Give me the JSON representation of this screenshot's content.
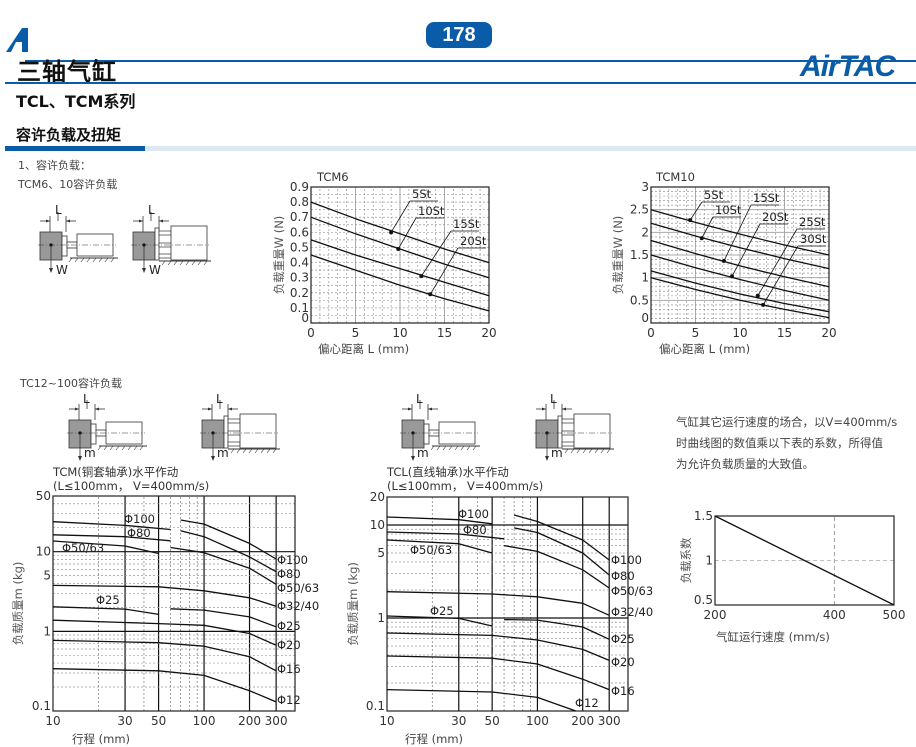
{
  "header": {
    "page_number": "178",
    "title": "三轴气缸",
    "logo": "AirTAC",
    "series": "TCL、TCM系列",
    "section": "容许负载及扭矩",
    "accent_color": "#0a5ca8"
  },
  "intro": {
    "item": "1、容许负载：",
    "sub_tcm": "TCM6、10容许负载",
    "sub_tc": "TC12~100容许负载"
  },
  "diagrams": {
    "dim_label": "L",
    "force_label": "W",
    "mass_label": "m"
  },
  "note": {
    "lines": [
      "气缸其它运行速度的场合，以V=400mm/s",
      "时曲线图的数值乘以下表的系数，所得值",
      "为允许负载质量的大致值。"
    ]
  },
  "chart_data": [
    {
      "type": "line",
      "title": "TCM6",
      "xlabel": "偏心距离  L (mm)",
      "ylabel": "负载重量W (N)",
      "xscale": "linear",
      "yscale": "linear",
      "xlim": [
        0,
        20
      ],
      "ylim": [
        0,
        0.9
      ],
      "xticks": [
        0,
        5,
        10,
        15,
        20
      ],
      "yticks": [
        0,
        0.1,
        0.2,
        0.3,
        0.4,
        0.5,
        0.6,
        0.7,
        0.8,
        0.9
      ],
      "grid": true,
      "series": [
        {
          "name": "5St",
          "segments": [
            [
              [
                0,
                0.8
              ],
              [
                5,
                0.69
              ],
              [
                10,
                0.59
              ],
              [
                15,
                0.49
              ],
              [
                20,
                0.4
              ]
            ]
          ],
          "marker": [
            9,
            0.6
          ]
        },
        {
          "name": "10St",
          "segments": [
            [
              [
                0,
                0.7
              ],
              [
                5,
                0.59
              ],
              [
                10,
                0.49
              ],
              [
                15,
                0.39
              ],
              [
                20,
                0.3
              ]
            ]
          ],
          "marker": [
            9.8,
            0.49
          ]
        },
        {
          "name": "15St",
          "segments": [
            [
              [
                0,
                0.55
              ],
              [
                5,
                0.45
              ],
              [
                10,
                0.36
              ],
              [
                15,
                0.27
              ],
              [
                20,
                0.18
              ]
            ]
          ],
          "marker": [
            12.4,
            0.31
          ]
        },
        {
          "name": "20St",
          "segments": [
            [
              [
                0,
                0.45
              ],
              [
                5,
                0.35
              ],
              [
                10,
                0.25
              ],
              [
                15,
                0.16
              ],
              [
                20,
                0.08
              ]
            ]
          ],
          "marker": [
            13.4,
            0.19
          ]
        }
      ]
    },
    {
      "type": "line",
      "title": "TCM10",
      "xlabel": "偏心距离  L (mm)",
      "ylabel": "负载重量W (N)",
      "xscale": "linear",
      "yscale": "linear",
      "xlim": [
        0,
        20
      ],
      "ylim": [
        0,
        3
      ],
      "xticks": [
        0,
        5,
        10,
        15,
        20
      ],
      "yticks": [
        0,
        0.5,
        1,
        1.5,
        2,
        2.5,
        3
      ],
      "grid": true,
      "series": [
        {
          "name": "5St",
          "segments": [
            [
              [
                0,
                2.5
              ],
              [
                5,
                2.22
              ],
              [
                10,
                1.96
              ],
              [
                15,
                1.72
              ],
              [
                20,
                1.5
              ]
            ]
          ],
          "marker": [
            4.4,
            2.27
          ]
        },
        {
          "name": "10St",
          "segments": [
            [
              [
                0,
                2.2
              ],
              [
                5,
                1.92
              ],
              [
                10,
                1.66
              ],
              [
                15,
                1.42
              ],
              [
                20,
                1.2
              ]
            ]
          ],
          "marker": [
            5.7,
            1.87
          ]
        },
        {
          "name": "15St",
          "segments": [
            [
              [
                0,
                1.82
              ],
              [
                5,
                1.53
              ],
              [
                10,
                1.26
              ],
              [
                15,
                1.02
              ],
              [
                20,
                0.8
              ]
            ]
          ],
          "marker": [
            8.2,
            1.37
          ]
        },
        {
          "name": "20St",
          "segments": [
            [
              [
                0,
                1.5
              ],
              [
                5,
                1.22
              ],
              [
                10,
                0.96
              ],
              [
                15,
                0.72
              ],
              [
                20,
                0.5
              ]
            ]
          ],
          "marker": [
            9.1,
            1.03
          ]
        },
        {
          "name": "25St",
          "segments": [
            [
              [
                0,
                1.15
              ],
              [
                5,
                0.88
              ],
              [
                10,
                0.64
              ],
              [
                15,
                0.43
              ],
              [
                20,
                0.25
              ]
            ]
          ],
          "marker": [
            12,
            0.6
          ]
        },
        {
          "name": "30St",
          "segments": [
            [
              [
                0,
                1.0
              ],
              [
                5,
                0.74
              ],
              [
                10,
                0.5
              ],
              [
                15,
                0.3
              ],
              [
                20,
                0.12
              ]
            ]
          ],
          "marker": [
            12.6,
            0.4
          ]
        }
      ]
    },
    {
      "type": "line",
      "title": "TCM(铜套轴承)水平作动",
      "subtitle": "(L≤100mm， V=400mm/s)",
      "xlabel": "行程  (mm)",
      "ylabel": "负载质量m (kg)",
      "xscale": "log",
      "yscale": "log",
      "xlim": [
        10,
        400
      ],
      "ylim": [
        0.1,
        50
      ],
      "xticks": [
        10,
        30,
        50,
        100,
        200,
        300
      ],
      "yticks": [
        0.1,
        1,
        5,
        10,
        50
      ],
      "grid": true,
      "series": [
        {
          "name": "Φ100",
          "segments": [
            [
              [
                10,
                23.8
              ],
              [
                30,
                21.4
              ],
              [
                60,
                19.0
              ]
            ],
            [
              [
                70,
                25.0
              ],
              [
                100,
                22.2
              ],
              [
                200,
                12.7
              ],
              [
                300,
                8.1
              ]
            ]
          ]
        },
        {
          "name": "Φ80",
          "segments": [
            [
              [
                10,
                16.3
              ],
              [
                30,
                15.4
              ],
              [
                60,
                13.7
              ]
            ],
            [
              [
                70,
                18.3
              ],
              [
                100,
                15.4
              ],
              [
                200,
                8.6
              ],
              [
                300,
                5.6
              ]
            ]
          ]
        },
        {
          "name": "Φ50/63",
          "segments": [
            [
              [
                10,
                13.6
              ],
              [
                30,
                11.8
              ],
              [
                50,
                9.5
              ]
            ],
            [
              [
                60,
                11.3
              ],
              [
                100,
                9.7
              ],
              [
                200,
                6.2
              ],
              [
                300,
                3.9
              ]
            ]
          ]
        },
        {
          "name": "Φ32/40",
          "segments": [
            [
              [
                10,
                3.77
              ],
              [
                50,
                3.62
              ],
              [
                100,
                3.23
              ],
              [
                200,
                2.64
              ],
              [
                300,
                2.07
              ]
            ]
          ]
        },
        {
          "name": "Φ25",
          "segments": [
            [
              [
                10,
                2.03
              ],
              [
                30,
                1.9
              ],
              [
                50,
                1.63
              ]
            ],
            [
              [
                60,
                1.92
              ],
              [
                100,
                1.85
              ],
              [
                200,
                1.52
              ],
              [
                300,
                1.14
              ]
            ]
          ]
        },
        {
          "name": "Φ20",
          "segments": [
            [
              [
                10,
                1.38
              ],
              [
                50,
                1.25
              ],
              [
                100,
                1.19
              ],
              [
                200,
                0.94
              ],
              [
                300,
                0.67
              ]
            ]
          ]
        },
        {
          "name": "Φ16",
          "segments": [
            [
              [
                10,
                0.77
              ],
              [
                50,
                0.72
              ],
              [
                100,
                0.65
              ],
              [
                200,
                0.48
              ],
              [
                300,
                0.32
              ]
            ]
          ]
        },
        {
          "name": "Φ12",
          "segments": [
            [
              [
                10,
                0.34
              ],
              [
                50,
                0.32
              ],
              [
                100,
                0.28
              ],
              [
                200,
                0.18
              ],
              [
                300,
                0.13
              ]
            ]
          ]
        }
      ]
    },
    {
      "type": "line",
      "title": "TCL(直线轴承)水平作动",
      "subtitle": "(L≤100mm， V=400mm/s)",
      "xlabel": "行程  (mm)",
      "ylabel": "负载质量m (kg)",
      "xscale": "log",
      "yscale": "log",
      "xlim": [
        10,
        400
      ],
      "ylim": [
        0.1,
        20
      ],
      "xticks": [
        10,
        30,
        50,
        100,
        200,
        300
      ],
      "yticks": [
        0.1,
        1,
        5,
        10,
        20
      ],
      "grid": true,
      "series": [
        {
          "name": "Φ100",
          "segments": [
            [
              [
                10,
                12.2
              ],
              [
                30,
                11.4
              ],
              [
                50,
                10.3
              ]
            ],
            [
              [
                70,
                12.8
              ],
              [
                100,
                10.9
              ],
              [
                200,
                6.9
              ],
              [
                300,
                4.2
              ]
            ]
          ]
        },
        {
          "name": "Φ80",
          "segments": [
            [
              [
                10,
                8.4
              ],
              [
                30,
                8.0
              ],
              [
                60,
                7.1
              ]
            ],
            [
              [
                70,
                9.3
              ],
              [
                100,
                8.3
              ],
              [
                200,
                5.0
              ],
              [
                300,
                2.9
              ]
            ]
          ]
        },
        {
          "name": "Φ50/63",
          "segments": [
            [
              [
                10,
                6.9
              ],
              [
                30,
                6.3
              ],
              [
                50,
                5.0
              ]
            ],
            [
              [
                60,
                6.0
              ],
              [
                100,
                5.2
              ],
              [
                200,
                3.3
              ],
              [
                300,
                2.1
              ]
            ]
          ]
        },
        {
          "name": "Φ32/40",
          "segments": [
            [
              [
                10,
                1.92
              ],
              [
                50,
                1.81
              ],
              [
                100,
                1.69
              ],
              [
                200,
                1.44
              ],
              [
                300,
                1.07
              ]
            ]
          ]
        },
        {
          "name": "Φ25",
          "segments": [
            [
              [
                10,
                1.05
              ],
              [
                30,
                0.99
              ],
              [
                50,
                0.82
              ]
            ],
            [
              [
                60,
                0.96
              ],
              [
                100,
                0.95
              ],
              [
                200,
                0.8
              ],
              [
                300,
                0.59
              ]
            ]
          ]
        },
        {
          "name": "Φ20",
          "segments": [
            [
              [
                10,
                0.69
              ],
              [
                50,
                0.65
              ],
              [
                100,
                0.58
              ],
              [
                200,
                0.46
              ],
              [
                300,
                0.35
              ]
            ]
          ]
        },
        {
          "name": "Φ16",
          "segments": [
            [
              [
                10,
                0.39
              ],
              [
                50,
                0.37
              ],
              [
                100,
                0.32
              ],
              [
                200,
                0.22
              ],
              [
                300,
                0.17
              ]
            ]
          ]
        },
        {
          "name": "Φ12",
          "segments": [
            [
              [
                10,
                0.17
              ],
              [
                50,
                0.16
              ],
              [
                100,
                0.14
              ],
              [
                180,
                0.1
              ]
            ]
          ]
        }
      ]
    },
    {
      "type": "line",
      "xlabel": "气缸运行速度    (mm/s)",
      "ylabel": "负载系数",
      "xscale": "linear",
      "yscale": "linear",
      "xlim": [
        200,
        500
      ],
      "ylim": [
        0.5,
        1.5
      ],
      "xticks": [
        200,
        400,
        500
      ],
      "yticks": [
        0.5,
        1,
        1.5
      ],
      "grid": false,
      "reference_lines": {
        "x": 400,
        "y": 1
      },
      "series": [
        {
          "segments": [
            [
              [
                200,
                1.5
              ],
              [
                500,
                0.5
              ]
            ]
          ]
        }
      ]
    }
  ]
}
